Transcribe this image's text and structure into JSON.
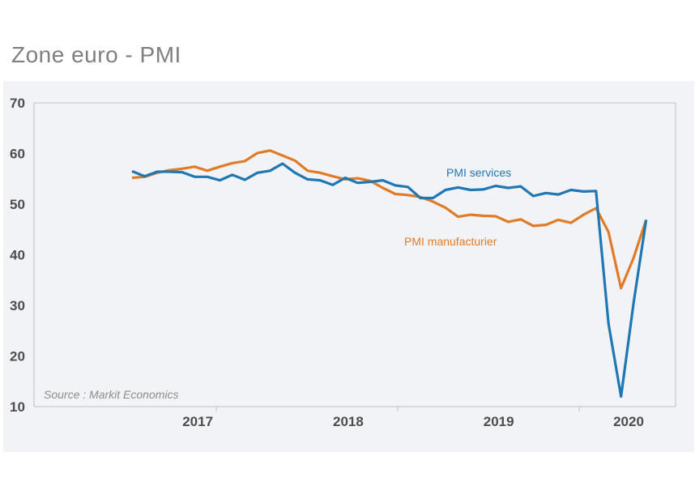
{
  "title": "Zone euro - PMI",
  "source": "Source : Markit Economics",
  "colors": {
    "manufacturing": "#1f77b4",
    "services": "#e07b27",
    "axis": "#bfbfbf",
    "panel": "#f2f3f6"
  },
  "chart_data": {
    "type": "line",
    "title": "Zone euro - PMI",
    "xlabel": "",
    "ylabel": "",
    "ylim": [
      10,
      70
    ],
    "yticks": [
      "70",
      "60",
      "50",
      "40",
      "30",
      "20",
      "10"
    ],
    "year_labels": [
      "2017",
      "2018",
      "2019",
      "2020"
    ],
    "grid": false,
    "x": [
      "2017-01",
      "2017-02",
      "2017-03",
      "2017-04",
      "2017-05",
      "2017-06",
      "2017-07",
      "2017-08",
      "2017-09",
      "2017-10",
      "2017-11",
      "2017-12",
      "2018-01",
      "2018-02",
      "2018-03",
      "2018-04",
      "2018-05",
      "2018-06",
      "2018-07",
      "2018-08",
      "2018-09",
      "2018-10",
      "2018-11",
      "2018-12",
      "2019-01",
      "2019-02",
      "2019-03",
      "2019-04",
      "2019-05",
      "2019-06",
      "2019-07",
      "2019-08",
      "2019-09",
      "2019-10",
      "2019-11",
      "2019-12",
      "2020-01",
      "2020-02",
      "2020-03",
      "2020-04",
      "2020-05",
      "2020-06"
    ],
    "series": [
      {
        "name": "PMI manufacturier",
        "values": [
          55.2,
          55.4,
          56.2,
          56.7,
          57.0,
          57.4,
          56.6,
          57.4,
          58.1,
          58.5,
          60.1,
          60.6,
          59.6,
          58.6,
          56.6,
          56.2,
          55.5,
          54.9,
          55.1,
          54.6,
          53.2,
          52.0,
          51.8,
          51.4,
          50.5,
          49.3,
          47.5,
          47.9,
          47.7,
          47.6,
          46.5,
          47.0,
          45.7,
          45.9,
          46.9,
          46.3,
          47.9,
          49.2,
          44.5,
          33.4,
          39.4,
          46.9
        ]
      },
      {
        "name": "PMI services",
        "values": [
          56.5,
          55.5,
          56.4,
          56.4,
          56.3,
          55.4,
          55.4,
          54.7,
          55.8,
          54.8,
          56.2,
          56.6,
          58.0,
          56.2,
          54.9,
          54.7,
          53.8,
          55.2,
          54.2,
          54.4,
          54.7,
          53.7,
          53.4,
          51.2,
          51.2,
          52.8,
          53.3,
          52.8,
          52.9,
          53.6,
          53.2,
          53.5,
          51.6,
          52.2,
          51.9,
          52.8,
          52.5,
          52.6,
          26.4,
          12.0,
          30.5,
          46.9
        ]
      }
    ]
  }
}
